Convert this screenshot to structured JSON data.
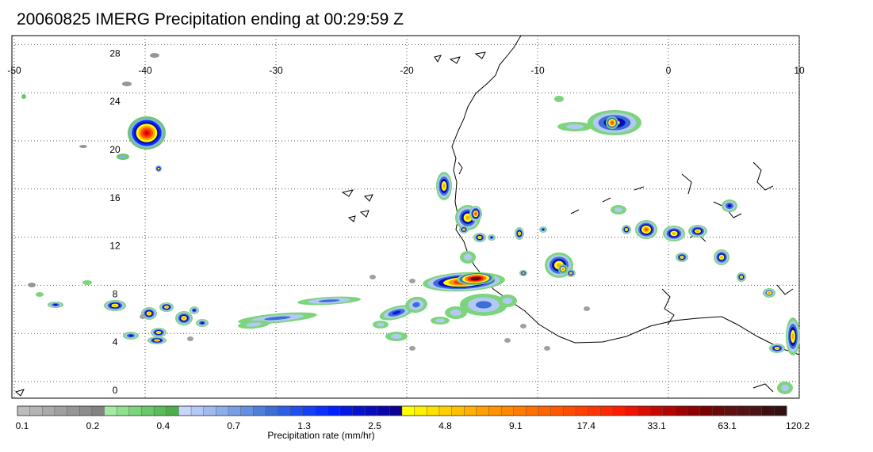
{
  "title": "20060825 IMERG Precipitation ending at 00:29:59 Z",
  "map": {
    "lon_range": [
      -50,
      10
    ],
    "lat_range": [
      -1,
      30
    ],
    "lon_ticks": [
      "-50",
      "-40",
      "-30",
      "-20",
      "-10",
      "0",
      "10"
    ],
    "lat_ticks": [
      "28",
      "24",
      "20",
      "16",
      "12",
      "8",
      "4",
      "0"
    ],
    "grid": "dotted"
  },
  "colorbar": {
    "title": "Precipitation rate (mm/hr)",
    "labels": [
      "0.1",
      "0.2",
      "0.4",
      "0.7",
      "1.3",
      "2.5",
      "4.8",
      "9.1",
      "17.4",
      "33.1",
      "63.1",
      "120.2"
    ],
    "colors": [
      "#bdbdbd",
      "#b4b4b4",
      "#aaaaaa",
      "#a0a0a0",
      "#969696",
      "#8c8c8c",
      "#828282",
      "#a4eaa4",
      "#90e090",
      "#7cd57c",
      "#6ac86a",
      "#5abb5a",
      "#4cae4c",
      "#c8d6fa",
      "#b4c8f5",
      "#a0baf0",
      "#8caeea",
      "#789fe5",
      "#6490e0",
      "#507fdb",
      "#3c6ed5",
      "#2d5fe6",
      "#1f4ff0",
      "#1440f5",
      "#0a30fa",
      "#0020ff",
      "#0418e4",
      "#0612d0",
      "#080cbc",
      "#0a06a8",
      "#0c0094",
      "#ffff00",
      "#fff000",
      "#ffe000",
      "#ffd000",
      "#ffc000",
      "#ffb000",
      "#ffa000",
      "#ff9400",
      "#ff8800",
      "#ff7c00",
      "#ff7000",
      "#ff6400",
      "#ff5800",
      "#ff4c00",
      "#ff4000",
      "#ff3400",
      "#ff2800",
      "#ff1c00",
      "#f01400",
      "#dc0c00",
      "#c80800",
      "#b40400",
      "#a00000",
      "#8c0000",
      "#7a0000",
      "#6a0808",
      "#5c1010",
      "#541212",
      "#4a1414",
      "#3c1010",
      "#301010"
    ]
  }
}
